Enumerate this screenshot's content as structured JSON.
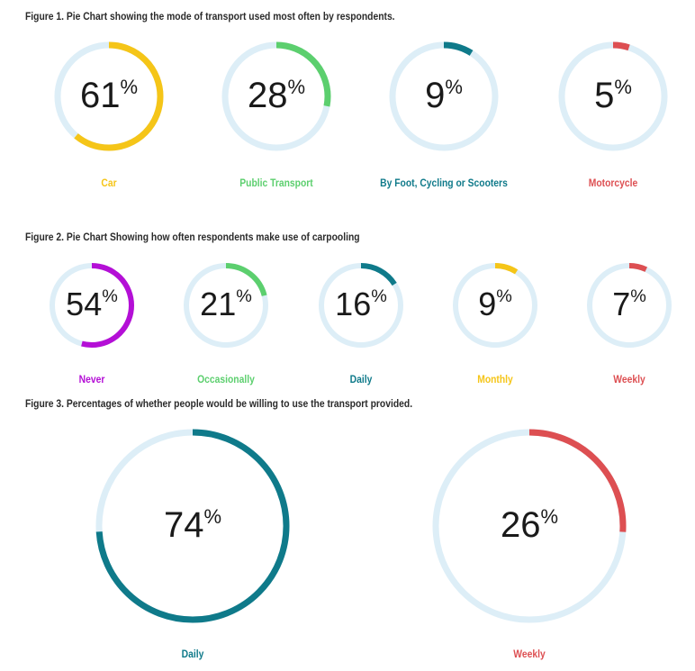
{
  "chart_data": [
    {
      "type": "pie",
      "title": "Figure 1. Pie Chart showing the mode of transport used most often by respondents.",
      "slices": [
        {
          "label": "Car",
          "value": 61,
          "color": "#f5c518"
        },
        {
          "label": "Public Transport",
          "value": 28,
          "color": "#5ccf6e"
        },
        {
          "label": "By Foot, Cycling or Scooters",
          "value": 9,
          "color": "#0f7a8a"
        },
        {
          "label": "Motorcycle",
          "value": 5,
          "color": "#dd4f52"
        }
      ]
    },
    {
      "type": "pie",
      "title": "Figure 2. Pie Chart Showing how often respondents make use of carpooling",
      "slices": [
        {
          "label": "Never",
          "value": 54,
          "color": "#b40fd6"
        },
        {
          "label": "Occasionally",
          "value": 21,
          "color": "#5ccf6e"
        },
        {
          "label": "Daily",
          "value": 16,
          "color": "#0f7a8a"
        },
        {
          "label": "Monthly",
          "value": 9,
          "color": "#f5c518"
        },
        {
          "label": "Weekly",
          "value": 7,
          "color": "#dd4f52"
        }
      ]
    },
    {
      "type": "pie",
      "title": "Figure 3. Percentages of whether people would be willing to use the transport provided.",
      "slices": [
        {
          "label": "Daily",
          "value": 74,
          "color": "#0f7a8a"
        },
        {
          "label": "Weekly",
          "value": 26,
          "color": "#dd4f52"
        }
      ]
    }
  ],
  "track_color": "#ddeef7",
  "percent_symbol": "%"
}
